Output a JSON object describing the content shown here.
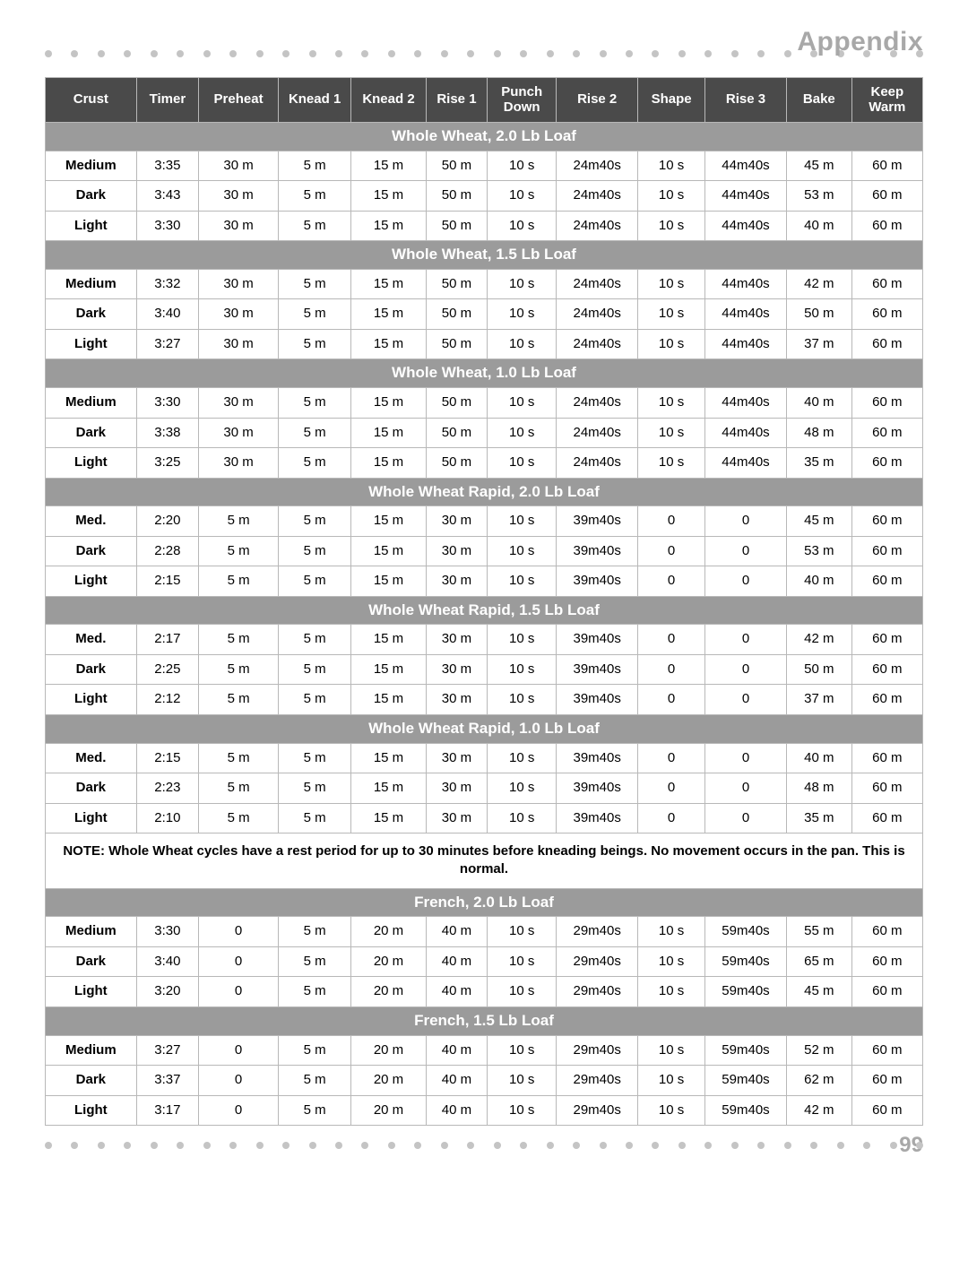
{
  "header": {
    "title": "Appendix",
    "title_color": "#a8a8a8",
    "dot_color": "#c4c4c4",
    "dot_count": 34
  },
  "columns": [
    "Crust",
    "Timer",
    "Preheat",
    "Knead 1",
    "Knead 2",
    "Rise 1",
    "Punch Down",
    "Rise 2",
    "Shape",
    "Rise 3",
    "Bake",
    "Keep Warm"
  ],
  "table_style": {
    "header_bg": "#4a4a4a",
    "header_fg": "#ffffff",
    "section_bg": "#9b9b9b",
    "section_fg": "#ffffff",
    "border_color": "#b8b8b8",
    "body_font_size": 15,
    "header_font_size": 15,
    "section_font_size": 17
  },
  "sections": [
    {
      "title": "Whole Wheat, 2.0 Lb Loaf",
      "rows": [
        [
          "Medium",
          "3:35",
          "30 m",
          "5 m",
          "15 m",
          "50 m",
          "10 s",
          "24m40s",
          "10 s",
          "44m40s",
          "45 m",
          "60 m"
        ],
        [
          "Dark",
          "3:43",
          "30 m",
          "5 m",
          "15 m",
          "50 m",
          "10 s",
          "24m40s",
          "10 s",
          "44m40s",
          "53 m",
          "60 m"
        ],
        [
          "Light",
          "3:30",
          "30 m",
          "5 m",
          "15 m",
          "50 m",
          "10 s",
          "24m40s",
          "10 s",
          "44m40s",
          "40 m",
          "60 m"
        ]
      ]
    },
    {
      "title": "Whole Wheat, 1.5 Lb Loaf",
      "rows": [
        [
          "Medium",
          "3:32",
          "30 m",
          "5 m",
          "15 m",
          "50 m",
          "10 s",
          "24m40s",
          "10 s",
          "44m40s",
          "42 m",
          "60 m"
        ],
        [
          "Dark",
          "3:40",
          "30 m",
          "5 m",
          "15 m",
          "50 m",
          "10 s",
          "24m40s",
          "10 s",
          "44m40s",
          "50 m",
          "60 m"
        ],
        [
          "Light",
          "3:27",
          "30 m",
          "5 m",
          "15 m",
          "50 m",
          "10 s",
          "24m40s",
          "10 s",
          "44m40s",
          "37 m",
          "60 m"
        ]
      ]
    },
    {
      "title": "Whole Wheat, 1.0 Lb Loaf",
      "rows": [
        [
          "Medium",
          "3:30",
          "30 m",
          "5 m",
          "15 m",
          "50 m",
          "10 s",
          "24m40s",
          "10 s",
          "44m40s",
          "40 m",
          "60 m"
        ],
        [
          "Dark",
          "3:38",
          "30 m",
          "5 m",
          "15 m",
          "50 m",
          "10 s",
          "24m40s",
          "10 s",
          "44m40s",
          "48 m",
          "60 m"
        ],
        [
          "Light",
          "3:25",
          "30 m",
          "5 m",
          "15 m",
          "50 m",
          "10 s",
          "24m40s",
          "10 s",
          "44m40s",
          "35 m",
          "60 m"
        ]
      ]
    },
    {
      "title": "Whole Wheat Rapid, 2.0 Lb Loaf",
      "rows": [
        [
          "Med.",
          "2:20",
          "5 m",
          "5 m",
          "15 m",
          "30 m",
          "10 s",
          "39m40s",
          "0",
          "0",
          "45 m",
          "60 m"
        ],
        [
          "Dark",
          "2:28",
          "5 m",
          "5 m",
          "15 m",
          "30 m",
          "10 s",
          "39m40s",
          "0",
          "0",
          "53 m",
          "60 m"
        ],
        [
          "Light",
          "2:15",
          "5 m",
          "5 m",
          "15 m",
          "30 m",
          "10 s",
          "39m40s",
          "0",
          "0",
          "40 m",
          "60 m"
        ]
      ]
    },
    {
      "title": "Whole Wheat Rapid, 1.5 Lb Loaf",
      "rows": [
        [
          "Med.",
          "2:17",
          "5 m",
          "5 m",
          "15 m",
          "30 m",
          "10 s",
          "39m40s",
          "0",
          "0",
          "42 m",
          "60 m"
        ],
        [
          "Dark",
          "2:25",
          "5 m",
          "5 m",
          "15 m",
          "30 m",
          "10 s",
          "39m40s",
          "0",
          "0",
          "50 m",
          "60 m"
        ],
        [
          "Light",
          "2:12",
          "5 m",
          "5 m",
          "15 m",
          "30 m",
          "10 s",
          "39m40s",
          "0",
          "0",
          "37 m",
          "60 m"
        ]
      ]
    },
    {
      "title": "Whole Wheat Rapid, 1.0 Lb Loaf",
      "rows": [
        [
          "Med.",
          "2:15",
          "5 m",
          "5 m",
          "15 m",
          "30 m",
          "10 s",
          "39m40s",
          "0",
          "0",
          "40 m",
          "60 m"
        ],
        [
          "Dark",
          "2:23",
          "5 m",
          "5 m",
          "15 m",
          "30 m",
          "10 s",
          "39m40s",
          "0",
          "0",
          "48 m",
          "60 m"
        ],
        [
          "Light",
          "2:10",
          "5 m",
          "5 m",
          "15 m",
          "30 m",
          "10 s",
          "39m40s",
          "0",
          "0",
          "35 m",
          "60 m"
        ]
      ],
      "note_after": "NOTE: Whole Wheat cycles have a rest period for up to 30 minutes before kneading beings. No movement occurs in the pan. This is normal."
    },
    {
      "title": "French, 2.0 Lb Loaf",
      "rows": [
        [
          "Medium",
          "3:30",
          "0",
          "5 m",
          "20 m",
          "40 m",
          "10 s",
          "29m40s",
          "10 s",
          "59m40s",
          "55 m",
          "60 m"
        ],
        [
          "Dark",
          "3:40",
          "0",
          "5 m",
          "20 m",
          "40 m",
          "10 s",
          "29m40s",
          "10 s",
          "59m40s",
          "65 m",
          "60 m"
        ],
        [
          "Light",
          "3:20",
          "0",
          "5 m",
          "20 m",
          "40 m",
          "10 s",
          "29m40s",
          "10 s",
          "59m40s",
          "45 m",
          "60 m"
        ]
      ]
    },
    {
      "title": "French, 1.5 Lb Loaf",
      "rows": [
        [
          "Medium",
          "3:27",
          "0",
          "5 m",
          "20 m",
          "40 m",
          "10 s",
          "29m40s",
          "10 s",
          "59m40s",
          "52 m",
          "60 m"
        ],
        [
          "Dark",
          "3:37",
          "0",
          "5 m",
          "20 m",
          "40 m",
          "10 s",
          "29m40s",
          "10 s",
          "59m40s",
          "62 m",
          "60 m"
        ],
        [
          "Light",
          "3:17",
          "0",
          "5 m",
          "20 m",
          "40 m",
          "10 s",
          "29m40s",
          "10 s",
          "59m40s",
          "42 m",
          "60 m"
        ]
      ]
    }
  ],
  "footer": {
    "page_number": "99",
    "page_number_color": "#a8a8a8",
    "dot_count": 34,
    "dot_color": "#c4c4c4"
  }
}
